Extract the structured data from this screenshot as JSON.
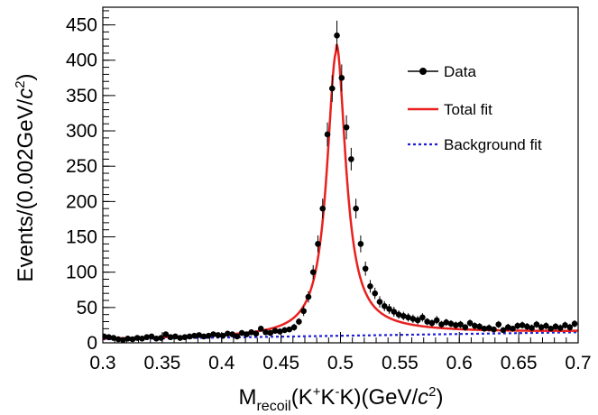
{
  "chart_data": {
    "type": "scatter",
    "title": "",
    "xlabel": {
      "main": "M",
      "sub": "recoil",
      "rest1": "(K",
      "sup1": "+",
      "rest2": "K",
      "sup2": "-",
      "rest3": "K)(GeV/",
      "italic": "c",
      "sup3": "2",
      "rest4": ")"
    },
    "ylabel": {
      "main": "Events/(0.002GeV/",
      "italic": "c",
      "sup": "2",
      "rest": ")"
    },
    "xlim": [
      0.3,
      0.7
    ],
    "ylim": [
      0,
      475
    ],
    "xticks": [
      "0.3",
      "0.35",
      "0.4",
      "0.45",
      "0.5",
      "0.55",
      "0.6",
      "0.65",
      "0.7"
    ],
    "yticks": [
      "0",
      "50",
      "100",
      "150",
      "200",
      "250",
      "300",
      "350",
      "400",
      "450"
    ],
    "grid": false,
    "legend_position": "top-right",
    "colors": {
      "data": "#000000",
      "total_fit": "#e8211f",
      "background_fit": "#1f1fd6"
    },
    "series": [
      {
        "name": "Data",
        "kind": "points",
        "x": [
          0.301,
          0.305,
          0.309,
          0.313,
          0.317,
          0.321,
          0.325,
          0.329,
          0.333,
          0.337,
          0.341,
          0.345,
          0.349,
          0.353,
          0.357,
          0.361,
          0.365,
          0.369,
          0.373,
          0.377,
          0.381,
          0.385,
          0.389,
          0.393,
          0.397,
          0.401,
          0.405,
          0.409,
          0.413,
          0.417,
          0.421,
          0.425,
          0.429,
          0.433,
          0.437,
          0.441,
          0.445,
          0.449,
          0.453,
          0.457,
          0.461,
          0.465,
          0.469,
          0.473,
          0.477,
          0.481,
          0.485,
          0.489,
          0.493,
          0.497,
          0.501,
          0.505,
          0.509,
          0.513,
          0.517,
          0.521,
          0.525,
          0.529,
          0.533,
          0.537,
          0.541,
          0.545,
          0.549,
          0.553,
          0.557,
          0.561,
          0.565,
          0.569,
          0.573,
          0.577,
          0.581,
          0.585,
          0.589,
          0.593,
          0.597,
          0.601,
          0.605,
          0.609,
          0.613,
          0.617,
          0.621,
          0.625,
          0.629,
          0.633,
          0.637,
          0.641,
          0.645,
          0.649,
          0.653,
          0.657,
          0.661,
          0.665,
          0.669,
          0.673,
          0.677,
          0.681,
          0.685,
          0.689,
          0.693,
          0.697
        ],
        "y": [
          9,
          8,
          7,
          5,
          4,
          6,
          5,
          7,
          6,
          8,
          9,
          6,
          7,
          12,
          8,
          9,
          7,
          8,
          9,
          10,
          11,
          9,
          10,
          12,
          11,
          10,
          13,
          12,
          9,
          14,
          12,
          15,
          13,
          20,
          15,
          14,
          17,
          16,
          18,
          19,
          22,
          30,
          45,
          65,
          100,
          140,
          190,
          295,
          360,
          435,
          375,
          305,
          260,
          190,
          140,
          105,
          80,
          70,
          58,
          52,
          48,
          44,
          40,
          38,
          36,
          34,
          32,
          36,
          30,
          28,
          32,
          26,
          29,
          27,
          25,
          26,
          22,
          28,
          24,
          23,
          20,
          21,
          19,
          26,
          18,
          22,
          20,
          24,
          25,
          23,
          21,
          26,
          22,
          24,
          20,
          23,
          21,
          25,
          22,
          27
        ],
        "yerr": [
          3,
          3,
          3,
          2,
          2,
          2,
          2,
          3,
          2,
          3,
          3,
          2,
          3,
          3,
          3,
          3,
          3,
          3,
          3,
          3,
          3,
          3,
          3,
          3,
          3,
          3,
          4,
          3,
          3,
          4,
          3,
          4,
          4,
          4,
          4,
          4,
          4,
          4,
          4,
          4,
          5,
          5,
          7,
          8,
          10,
          12,
          14,
          17,
          19,
          21,
          19,
          17,
          16,
          14,
          12,
          10,
          9,
          8,
          8,
          7,
          7,
          7,
          6,
          6,
          6,
          6,
          6,
          6,
          5,
          5,
          6,
          5,
          5,
          5,
          5,
          5,
          5,
          5,
          5,
          5,
          4,
          5,
          4,
          5,
          4,
          5,
          4,
          5,
          5,
          5,
          5,
          5,
          5,
          5,
          4,
          5,
          5,
          5,
          5,
          5
        ]
      },
      {
        "name": "Total fit",
        "kind": "line",
        "style": "solid",
        "peak_mean": 0.4965,
        "peak_gamma": 0.0095,
        "peak_height": 402
      },
      {
        "name": "Background fit",
        "kind": "line",
        "style": "dashed",
        "x": [
          0.3,
          0.7
        ],
        "y": [
          5.0,
          15.0
        ]
      }
    ]
  }
}
